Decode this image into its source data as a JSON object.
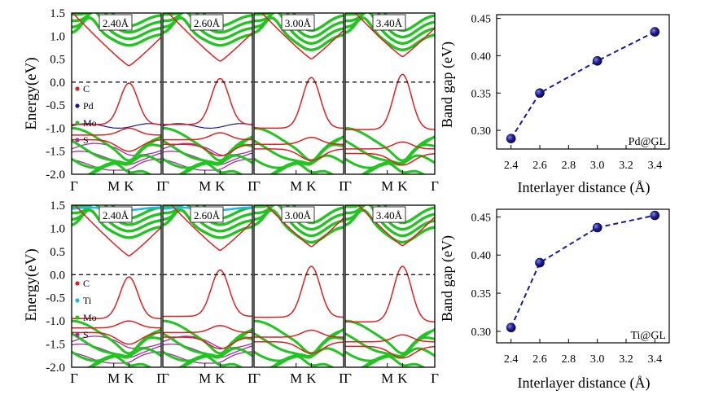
{
  "band_axes": {
    "ylabel": "Energy(eV)",
    "ylim": [
      -2.0,
      1.5
    ],
    "y_ticks": [
      "1.5",
      "1.0",
      "0.5",
      "0.0",
      "-0.5",
      "-1.0",
      "-1.5",
      "-2.0"
    ],
    "k_labels": [
      "Γ",
      "M",
      "K",
      "Γ"
    ]
  },
  "band_rows": [
    {
      "legend": [
        "C",
        "Pd",
        "Mo",
        "S"
      ],
      "panels": [
        "2.40Å",
        "2.60Å",
        "3.00Å",
        "3.40Å"
      ]
    },
    {
      "legend": [
        "C",
        "Ti",
        "Mo",
        "S"
      ],
      "panels": [
        "2.40Å",
        "2.60Å",
        "3.00Å",
        "3.40Å"
      ]
    }
  ],
  "chart_data": [
    {
      "type": "line",
      "ylabel": "Band gap (eV)",
      "xlabel": "Interlayer distance (Å)",
      "x": [
        2.4,
        2.6,
        3.0,
        3.4
      ],
      "series": [
        {
          "name": "Pd@GL",
          "values": [
            0.289,
            0.35,
            0.393,
            0.432
          ]
        }
      ],
      "xlim": [
        2.3,
        3.5
      ],
      "ylim": [
        0.275,
        0.455
      ],
      "x_ticks": [
        2.4,
        2.6,
        2.8,
        3.0,
        3.2,
        3.4
      ],
      "y_ticks": [
        0.3,
        0.35,
        0.4,
        0.45
      ],
      "annotation": "Pd@GL"
    },
    {
      "type": "line",
      "ylabel": "Band gap (eV)",
      "xlabel": "Interlayer distance (Å)",
      "x": [
        2.4,
        2.6,
        3.0,
        3.4
      ],
      "series": [
        {
          "name": "Ti@GL",
          "values": [
            0.305,
            0.39,
            0.436,
            0.452
          ]
        }
      ],
      "xlim": [
        2.3,
        3.5
      ],
      "ylim": [
        0.285,
        0.46
      ],
      "x_ticks": [
        2.4,
        2.6,
        2.8,
        3.0,
        3.2,
        3.4
      ],
      "y_ticks": [
        0.3,
        0.35,
        0.4,
        0.45
      ],
      "annotation": "Ti@GL"
    }
  ],
  "colors": {
    "C": "#e02020",
    "Pd": "#1a1a8c",
    "Ti": "#20b8e8",
    "Mo": "#22c422",
    "S": "#a030a0",
    "line": "#1a1a9c",
    "marker": "#1a1a8c"
  }
}
